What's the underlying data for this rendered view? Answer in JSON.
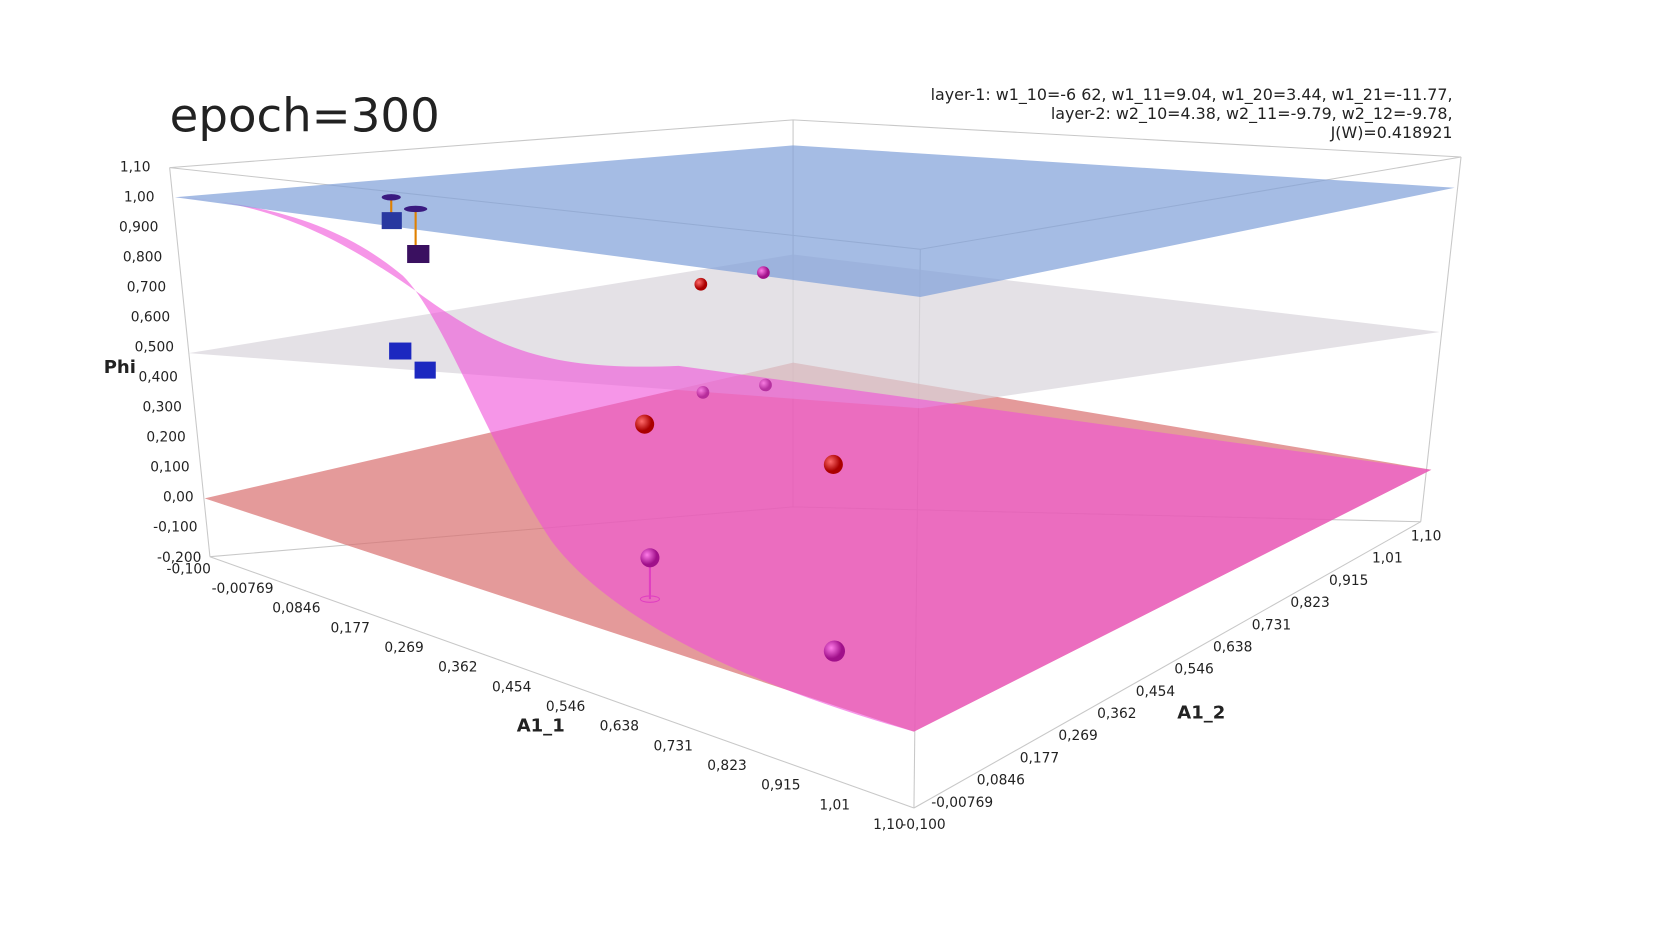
{
  "title": "epoch=300",
  "annotation": [
    "layer-1: w1_10=-6 62, w1_11=9.04, w1_20=3.44, w1_21=-11.77,",
    "layer-2: w2_10=4.38, w2_11=-9.79, w2_12=-9.78,",
    "J(W)=0.418921"
  ],
  "axes": {
    "z": {
      "title": "Phi",
      "ticks": [
        "1,10",
        "1,00",
        "0,900",
        "0,800",
        "0,700",
        "0,600",
        "0,500",
        "0,400",
        "0,300",
        "0,200",
        "0,100",
        "0,00",
        "-0,100",
        "-0,200"
      ]
    },
    "x": {
      "title": "A1_1",
      "ticks": [
        "-0,100",
        "-0,00769",
        "0,0846",
        "0,177",
        "0,269",
        "0,362",
        "0,454",
        "0,546",
        "0,638",
        "0,731",
        "0,823",
        "0,915",
        "1,01",
        "1,10"
      ]
    },
    "y": {
      "title": "A1_2",
      "ticks": [
        "-0,100",
        "-0,00769",
        "0,0846",
        "0,177",
        "0,269",
        "0,362",
        "0,454",
        "0,546",
        "0,638",
        "0,731",
        "0,823",
        "0,915",
        "1,01",
        "1,10"
      ]
    }
  }
}
